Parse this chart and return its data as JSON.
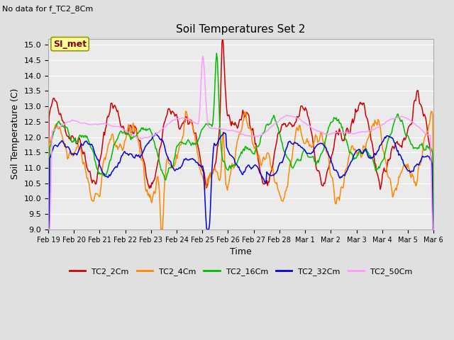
{
  "title": "Soil Temperatures Set 2",
  "subtitle": "No data for f_TC2_8Cm",
  "xlabel": "Time",
  "ylabel": "Soil Temperature (C)",
  "ylim": [
    9.0,
    15.2
  ],
  "yticks": [
    9.0,
    9.5,
    10.0,
    10.5,
    11.0,
    11.5,
    12.0,
    12.5,
    13.0,
    13.5,
    14.0,
    14.5,
    15.0
  ],
  "bg_color": "#e0e0e0",
  "plot_bg": "#ebebeb",
  "grid_color": "#ffffff",
  "series_colors": {
    "TC2_2Cm": "#cc0000",
    "TC2_4Cm": "#ff8800",
    "TC2_16Cm": "#00bb00",
    "TC2_32Cm": "#0000dd",
    "TC2_50Cm": "#ff99ff"
  },
  "xtick_labels": [
    "Feb 19",
    "Feb 20",
    "Feb 21",
    "Feb 22",
    "Feb 23",
    "Feb 24",
    "Feb 25",
    "Feb 26",
    "Feb 27",
    "Feb 28",
    "Mar 1",
    "Mar 2",
    "Mar 3",
    "Mar 4",
    "Mar 5",
    "Mar 6"
  ],
  "legend_label": "SI_met",
  "n_points": 500
}
